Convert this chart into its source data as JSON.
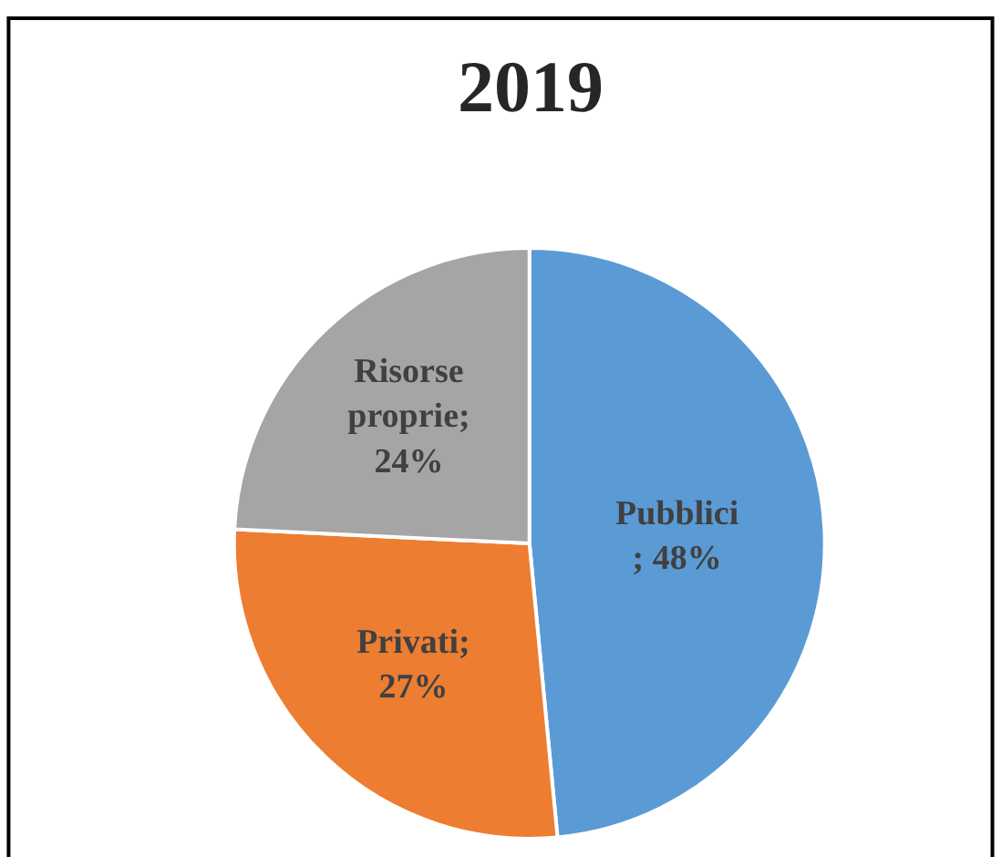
{
  "chart_data": {
    "type": "pie",
    "title": "2019",
    "categories": [
      "Pubblici",
      "Privati",
      "Risorse proprie"
    ],
    "values": [
      48,
      27,
      24
    ],
    "colors": [
      "#5b9bd5",
      "#ed7d31",
      "#a5a5a5"
    ],
    "value_labels": [
      "; 48%",
      "; 27%",
      "; 24%"
    ],
    "legend": false
  }
}
